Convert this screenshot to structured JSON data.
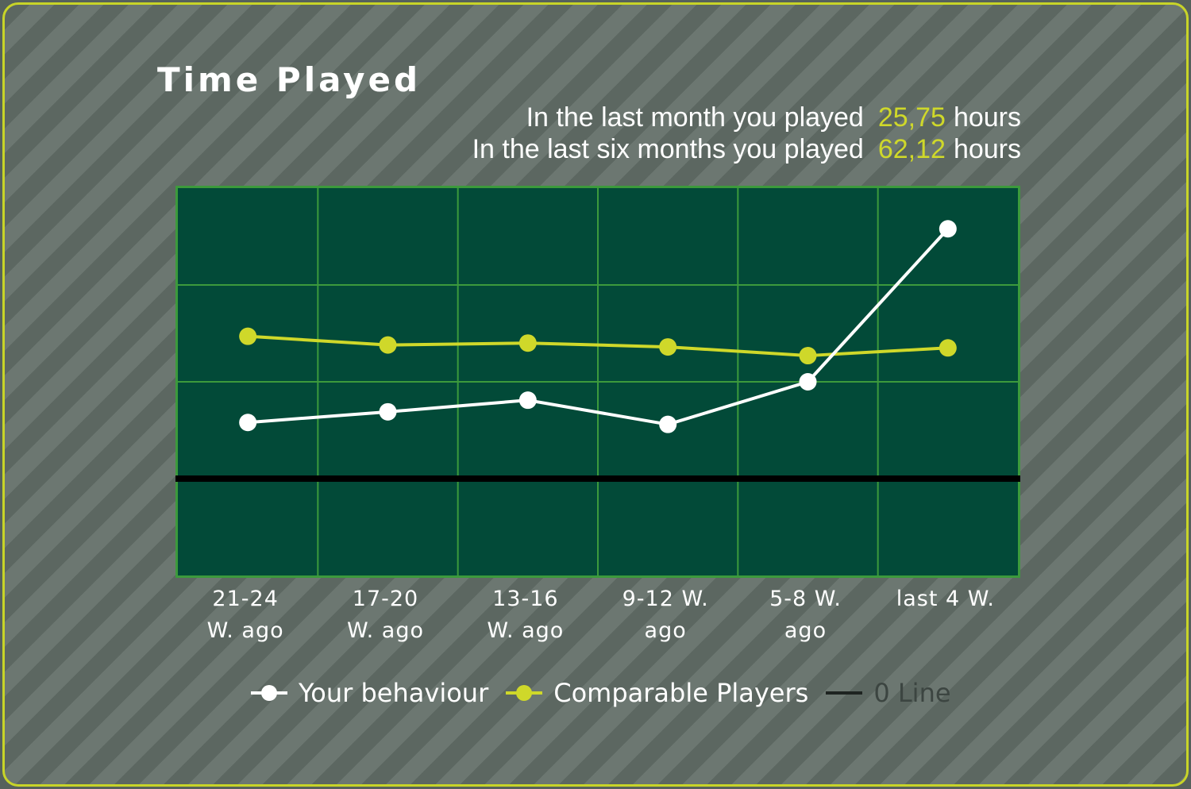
{
  "panel": {
    "title": "Time Played",
    "summary": [
      {
        "prefix": "In the last month you played",
        "value": "25,75",
        "unit": "hours"
      },
      {
        "prefix": "In the last six months you played",
        "value": "62,12",
        "unit": "hours"
      }
    ]
  },
  "colors": {
    "plot_background": "#024a38",
    "grid": "#3c9a3c",
    "your_behaviour": "#ffffff",
    "comparable_players": "#cfd82a",
    "zero_line": "#000000"
  },
  "chart_data": {
    "type": "line",
    "categories": [
      [
        "21-24",
        "W. ago"
      ],
      [
        "17-20",
        "W. ago"
      ],
      [
        "13-16",
        "W. ago"
      ],
      [
        "9-12 W.",
        "ago"
      ],
      [
        "5-8 W.",
        "ago"
      ],
      [
        "last 4 W.",
        ""
      ]
    ],
    "ylim": [
      -1,
      3
    ],
    "grid": true,
    "legend_position": "bottom",
    "series": [
      {
        "name": "Your behaviour",
        "values": [
          0.58,
          0.69,
          0.81,
          0.56,
          1.0,
          2.58
        ],
        "color": "#ffffff"
      },
      {
        "name": "Comparable Players",
        "values": [
          1.47,
          1.38,
          1.4,
          1.36,
          1.27,
          1.35
        ],
        "color": "#cfd82a"
      }
    ],
    "reference_lines": [
      {
        "name": "0 Line",
        "value": 0,
        "color": "#000000"
      }
    ]
  }
}
